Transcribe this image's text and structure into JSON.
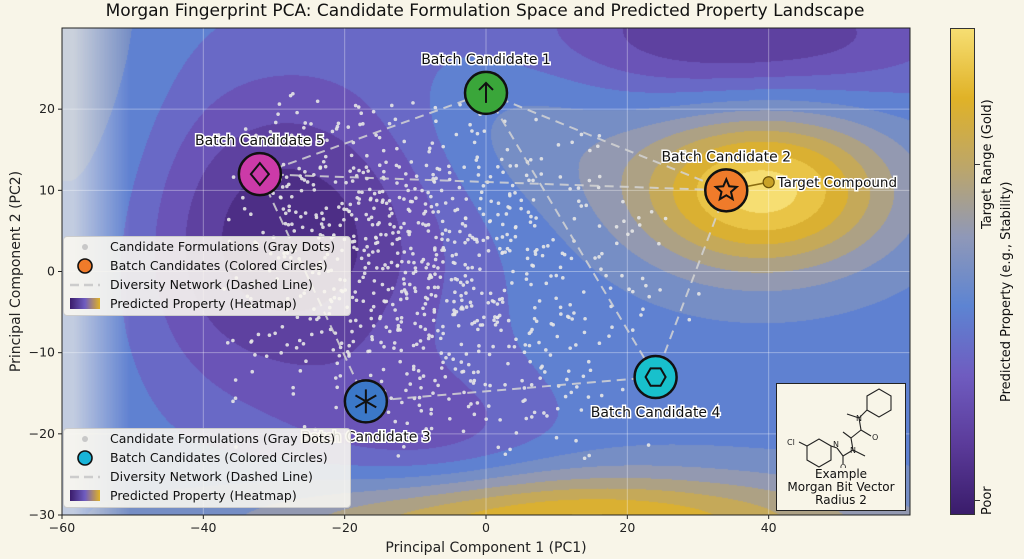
{
  "chart_data": {
    "type": "scatter",
    "title": "Morgan Fingerprint PCA: Candidate Formulation Space and Predicted Property Landscape",
    "xlabel": "Principal Component 1 (PC1)",
    "ylabel": "Principal Component 2 (PC2)",
    "xlim": [
      -60,
      60
    ],
    "ylim": [
      -30,
      30
    ],
    "xticks": [
      -60,
      -40,
      -20,
      0,
      20,
      40
    ],
    "yticks": [
      -30,
      -20,
      -10,
      0,
      10,
      20
    ],
    "grid": true,
    "candidate_formulations": {
      "name": "Candidate Formulations (Gray Dots)",
      "approx_count": 900,
      "x_range": [
        -38,
        32
      ],
      "y_range": [
        -24,
        22
      ]
    },
    "batch_candidates": [
      {
        "label": "Batch Candidate 1",
        "x": 0,
        "y": 22,
        "color": "#3aa63a",
        "symbol": "arrow-up",
        "label_pos": "above"
      },
      {
        "label": "Batch Candidate 2",
        "x": 34,
        "y": 10,
        "color": "#f07b2a",
        "symbol": "star",
        "label_pos": "above"
      },
      {
        "label": "Batch Candidate 3",
        "x": -17,
        "y": -16,
        "color": "#3b78c8",
        "symbol": "asterisk",
        "label_pos": "below"
      },
      {
        "label": "Batch Candidate 4",
        "x": 24,
        "y": -13,
        "color": "#18c0cc",
        "symbol": "hexagon",
        "label_pos": "below"
      },
      {
        "label": "Batch Candidate 5",
        "x": -32,
        "y": 12,
        "color": "#cc3aa8",
        "symbol": "diamond",
        "label_pos": "above"
      }
    ],
    "diversity_network": [
      [
        0,
        1
      ],
      [
        1,
        3
      ],
      [
        3,
        2
      ],
      [
        2,
        4
      ],
      [
        4,
        0
      ],
      [
        4,
        1
      ],
      [
        0,
        3
      ]
    ],
    "target_compound": {
      "label": "Target Compound",
      "x": 40,
      "y": 11,
      "color": "#c9a227"
    },
    "colorbar": {
      "label": "Predicted Property (e.g., Stability)",
      "ticks": [
        {
          "label": "Target Range (Gold)",
          "value": 0.72
        },
        {
          "label": "Poor",
          "value": 0.03
        }
      ],
      "colors": [
        "#3a1c6b",
        "#5b3b9a",
        "#6f5cc0",
        "#5d84d2",
        "#8f98b8",
        "#bca66a",
        "#e0b227",
        "#f6de72"
      ]
    }
  },
  "legends": [
    {
      "items": [
        "Candidate Formulations (Gray Dots)",
        "Batch Candidates (Colored Circles)",
        "Diversity Network (Dashed Line)",
        "Predicted Property (Heatmap)"
      ],
      "marker_color": "#f07b2a"
    },
    {
      "items": [
        "Candidate Formulations (Gray Dots)",
        "Batch Candidates (Colored Circles)",
        "Diversity Network (Dashed Line)",
        "Predicted Property (Heatmap)"
      ],
      "marker_color": "#18b4d8"
    }
  ],
  "inset": {
    "line1": "Example",
    "line2": "Morgan Bit Vector",
    "line3": "Radius 2",
    "atoms": [
      "Cl",
      "N",
      "N",
      "N",
      "O",
      "O"
    ]
  }
}
